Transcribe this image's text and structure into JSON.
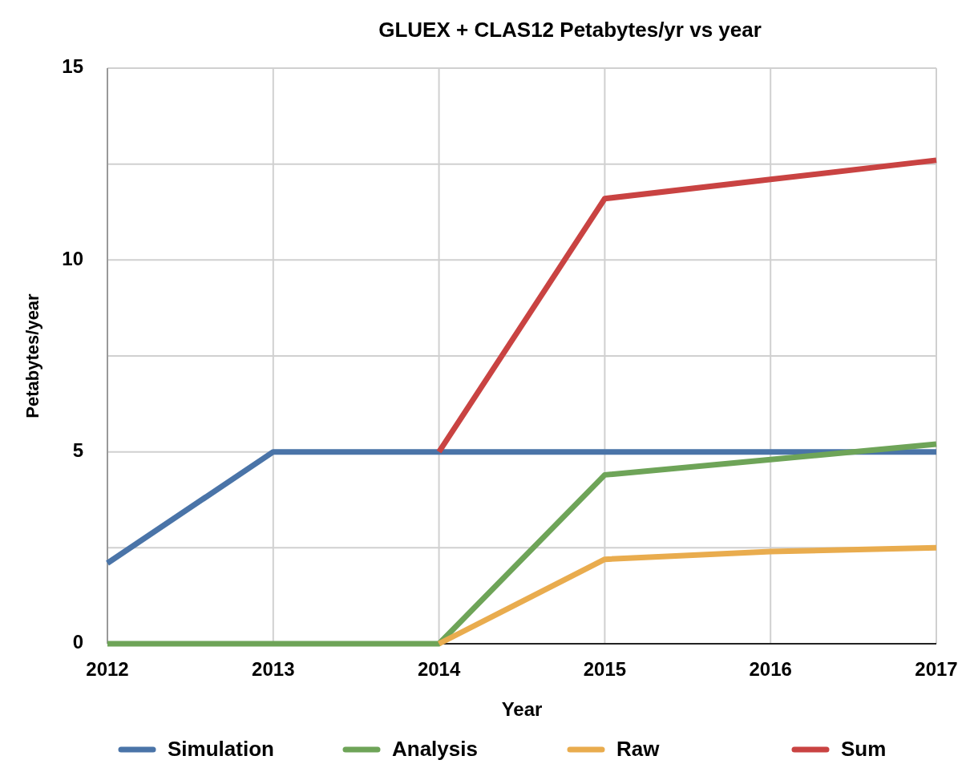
{
  "chart_data": {
    "type": "line",
    "title": "GLUEX + CLAS12 Petabytes/yr vs year",
    "xlabel": "Year",
    "ylabel": "Petabytes/year",
    "categories": [
      "2012",
      "2013",
      "2014",
      "2015",
      "2016",
      "2017"
    ],
    "series": [
      {
        "name": "Simulation",
        "color": "#4a74a8",
        "values": [
          2.1,
          5,
          5,
          5,
          5,
          5
        ]
      },
      {
        "name": "Analysis",
        "color": "#6ea458",
        "values": [
          0,
          0,
          0,
          4.4,
          4.8,
          5.2
        ]
      },
      {
        "name": "Raw",
        "color": "#e9ac4e",
        "values": [
          null,
          null,
          0,
          2.2,
          2.4,
          2.5
        ]
      },
      {
        "name": "Sum",
        "color": "#c94342",
        "values": [
          null,
          null,
          5,
          11.6,
          12.1,
          12.6
        ]
      }
    ],
    "ylim": [
      0,
      15
    ],
    "yticks": [
      0,
      {
        "value": 2.5,
        "label": null
      },
      5,
      {
        "value": 7.5,
        "label": null
      },
      10,
      {
        "value": 12.5,
        "label": null
      },
      15
    ],
    "grid": true,
    "legend": "bottom",
    "marker": "none",
    "line_style": "solid"
  }
}
